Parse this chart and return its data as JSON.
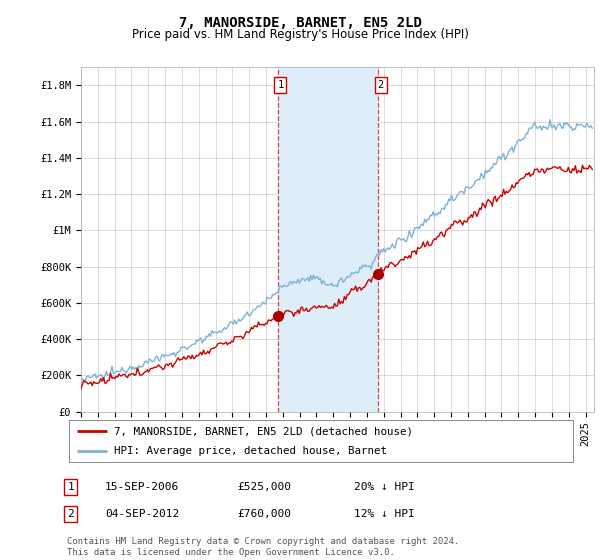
{
  "title": "7, MANORSIDE, BARNET, EN5 2LD",
  "subtitle": "Price paid vs. HM Land Registry's House Price Index (HPI)",
  "ylabel_ticks": [
    "£0",
    "£200K",
    "£400K",
    "£600K",
    "£800K",
    "£1M",
    "£1.2M",
    "£1.4M",
    "£1.6M",
    "£1.8M"
  ],
  "ytick_values": [
    0,
    200000,
    400000,
    600000,
    800000,
    1000000,
    1200000,
    1400000,
    1600000,
    1800000
  ],
  "ylim": [
    0,
    1900000
  ],
  "xlim_start": 1995.0,
  "xlim_end": 2025.5,
  "sale1_x": 2006.708,
  "sale1_y": 525000,
  "sale2_x": 2012.671,
  "sale2_y": 760000,
  "shade_color": "#ddeef8",
  "red_line_color": "#cc0000",
  "blue_line_color": "#7fb3d3",
  "marker_color": "#aa0000",
  "vline_color": "#dd4444",
  "legend_line1": "7, MANORSIDE, BARNET, EN5 2LD (detached house)",
  "legend_line2": "HPI: Average price, detached house, Barnet",
  "table_row1": [
    "1",
    "15-SEP-2006",
    "£525,000",
    "20% ↓ HPI"
  ],
  "table_row2": [
    "2",
    "04-SEP-2012",
    "£760,000",
    "12% ↓ HPI"
  ],
  "footnote": "Contains HM Land Registry data © Crown copyright and database right 2024.\nThis data is licensed under the Open Government Licence v3.0.",
  "background_color": "#ffffff",
  "grid_color": "#cccccc"
}
